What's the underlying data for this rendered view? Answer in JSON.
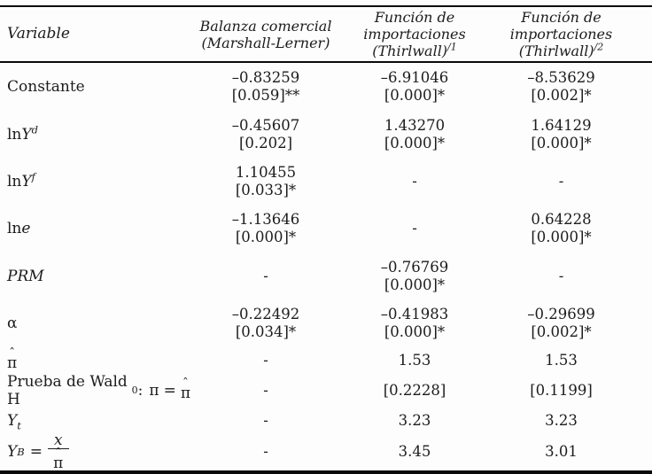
{
  "style": {
    "background": "#fdfdfd",
    "text_color": "#1c1c1c",
    "rule_color": "#0a0a0a"
  },
  "table": {
    "header": {
      "col1": "Variable",
      "col2_line1": "Balanza comercial",
      "col2_line2": "(Marshall-Lerner)",
      "col3_line1": "Función de",
      "col3_line2": "importaciones",
      "col3_line3": "(Thirlwall)",
      "col3_sup": "/1",
      "col4_line1": "Función de",
      "col4_line2": "importaciones",
      "col4_line3": "(Thirlwall)",
      "col4_sup": "/2"
    },
    "rows": [
      {
        "label": "Constante",
        "c1v": "–0.83259",
        "c1p": "[0.059]**",
        "c2v": "–6.91046",
        "c2p": "[0.000]*",
        "c3v": "–8.53629",
        "c3p": "[0.002]*"
      },
      {
        "label_ln": "ln",
        "label_main": "Y",
        "label_sup": "d",
        "c1v": "–0.45607",
        "c1p": "[0.202]",
        "c2v": "1.43270",
        "c2p": "[0.000]*",
        "c3v": "1.64129",
        "c3p": "[0.000]*"
      },
      {
        "label_ln": "ln",
        "label_main": "Y",
        "label_sup": "f",
        "c1v": "1.10455",
        "c1p": "[0.033]*",
        "c2": "-",
        "c3": "-"
      },
      {
        "label_ln": "ln",
        "label_main": "e",
        "c1v": "–1.13646",
        "c1p": "[0.000]*",
        "c2": "-",
        "c3v": "0.64228",
        "c3p": "[0.000]*"
      },
      {
        "label": "PRM",
        "c1": "-",
        "c2v": "–0.76769",
        "c2p": "[0.000]*",
        "c3": "-"
      },
      {
        "label": "α",
        "c1v": "–0.22492",
        "c1p": "[0.034]*",
        "c2v": "–0.41983",
        "c2p": "[0.000]*",
        "c3v": "–0.29699",
        "c3p": "[0.002]*"
      },
      {
        "label_base": "π",
        "label_hat": "ˆ",
        "c1": "-",
        "c2": "1.53",
        "c3": "1.53"
      },
      {
        "label_pre": "Prueba de Wald H",
        "label_sub": "0",
        "label_colon": ":",
        "label_pi": "π",
        "label_eq": "=",
        "label_hat_base": "π",
        "label_hat": "ˆ",
        "c1": "-",
        "c2": "[0.2228]",
        "c3": "[0.1199]"
      },
      {
        "label_main": "Y",
        "label_sub": "t",
        "c1": "-",
        "c2": "3.23",
        "c3": "3.23"
      },
      {
        "label_main": "Y",
        "label_sub": "B",
        "label_eq": "=",
        "frac_num": "x",
        "frac_den_base": "π",
        "frac_den_hat": "ˆ",
        "c1": "-",
        "c2": "3.45",
        "c3": "3.01"
      }
    ]
  }
}
